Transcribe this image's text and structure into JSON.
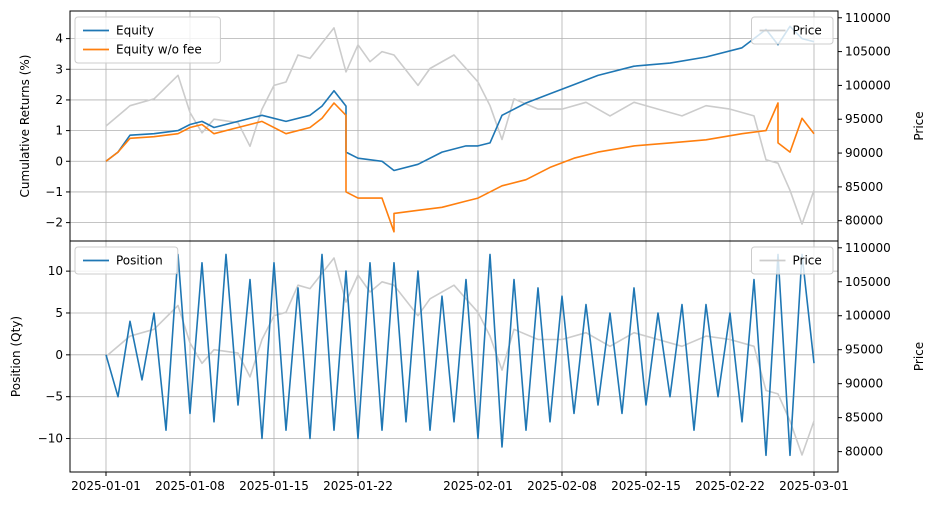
{
  "chart_data": [
    {
      "type": "line",
      "ylabel": "Cumulative Returns (%)",
      "y2label": "Price",
      "ylim": [
        -2.6,
        4.9
      ],
      "y2lim": [
        77000,
        111000
      ],
      "yticks": [
        -2,
        -1,
        0,
        1,
        2,
        3,
        4
      ],
      "y2ticks": [
        80000,
        85000,
        90000,
        95000,
        100000,
        105000,
        110000
      ],
      "grid": true,
      "legend": {
        "position": "top-left",
        "entries": [
          "Equity",
          "Equity w/o fee"
        ]
      },
      "legend2": {
        "position": "top-right",
        "entries": [
          "Price"
        ]
      },
      "series": [
        {
          "name": "Equity",
          "color": "#1f77b4",
          "points": [
            [
              "2025-01-01",
              0.0
            ],
            [
              "2025-01-02",
              0.3
            ],
            [
              "2025-01-03",
              0.85
            ],
            [
              "2025-01-05",
              0.9
            ],
            [
              "2025-01-07",
              1.0
            ],
            [
              "2025-01-08",
              1.2
            ],
            [
              "2025-01-09",
              1.3
            ],
            [
              "2025-01-10",
              1.1
            ],
            [
              "2025-01-12",
              1.3
            ],
            [
              "2025-01-14",
              1.5
            ],
            [
              "2025-01-16",
              1.3
            ],
            [
              "2025-01-18",
              1.5
            ],
            [
              "2025-01-19",
              1.8
            ],
            [
              "2025-01-20",
              2.3
            ],
            [
              "2025-01-21",
              1.8
            ],
            [
              "2025-01-21",
              0.3
            ],
            [
              "2025-01-22",
              0.1
            ],
            [
              "2025-01-24",
              0.0
            ],
            [
              "2025-01-25",
              -0.3
            ],
            [
              "2025-01-27",
              -0.1
            ],
            [
              "2025-01-29",
              0.3
            ],
            [
              "2025-01-31",
              0.5
            ],
            [
              "2025-02-01",
              0.5
            ],
            [
              "2025-02-02",
              0.6
            ],
            [
              "2025-02-03",
              1.5
            ],
            [
              "2025-02-05",
              1.9
            ],
            [
              "2025-02-07",
              2.2
            ],
            [
              "2025-02-09",
              2.5
            ],
            [
              "2025-02-11",
              2.8
            ],
            [
              "2025-02-14",
              3.1
            ],
            [
              "2025-02-17",
              3.2
            ],
            [
              "2025-02-20",
              3.4
            ],
            [
              "2025-02-23",
              3.7
            ],
            [
              "2025-02-25",
              4.3
            ],
            [
              "2025-02-26",
              3.8
            ],
            [
              "2025-02-27",
              4.4
            ],
            [
              "2025-02-28",
              4.0
            ],
            [
              "2025-03-01",
              3.9
            ]
          ]
        },
        {
          "name": "Equity w/o fee",
          "color": "#ff7f0e",
          "points": [
            [
              "2025-01-01",
              0.0
            ],
            [
              "2025-01-02",
              0.3
            ],
            [
              "2025-01-03",
              0.75
            ],
            [
              "2025-01-05",
              0.8
            ],
            [
              "2025-01-07",
              0.9
            ],
            [
              "2025-01-08",
              1.1
            ],
            [
              "2025-01-09",
              1.2
            ],
            [
              "2025-01-10",
              0.9
            ],
            [
              "2025-01-12",
              1.1
            ],
            [
              "2025-01-14",
              1.3
            ],
            [
              "2025-01-16",
              0.9
            ],
            [
              "2025-01-18",
              1.1
            ],
            [
              "2025-01-19",
              1.4
            ],
            [
              "2025-01-20",
              1.9
            ],
            [
              "2025-01-21",
              1.5
            ],
            [
              "2025-01-21",
              -1.0
            ],
            [
              "2025-01-22",
              -1.2
            ],
            [
              "2025-01-24",
              -1.2
            ],
            [
              "2025-01-25",
              -2.3
            ],
            [
              "2025-01-25",
              -1.7
            ],
            [
              "2025-01-27",
              -1.6
            ],
            [
              "2025-01-29",
              -1.5
            ],
            [
              "2025-01-31",
              -1.3
            ],
            [
              "2025-02-01",
              -1.2
            ],
            [
              "2025-02-03",
              -0.8
            ],
            [
              "2025-02-05",
              -0.6
            ],
            [
              "2025-02-07",
              -0.2
            ],
            [
              "2025-02-09",
              0.1
            ],
            [
              "2025-02-11",
              0.3
            ],
            [
              "2025-02-14",
              0.5
            ],
            [
              "2025-02-17",
              0.6
            ],
            [
              "2025-02-20",
              0.7
            ],
            [
              "2025-02-23",
              0.9
            ],
            [
              "2025-02-25",
              1.0
            ],
            [
              "2025-02-26",
              1.9
            ],
            [
              "2025-02-26",
              0.6
            ],
            [
              "2025-02-27",
              0.3
            ],
            [
              "2025-02-28",
              1.4
            ],
            [
              "2025-03-01",
              0.9
            ]
          ]
        },
        {
          "name": "Price",
          "color": "#cccccc",
          "axis": "right",
          "points": [
            [
              "2025-01-01",
              94000
            ],
            [
              "2025-01-03",
              97000
            ],
            [
              "2025-01-05",
              98000
            ],
            [
              "2025-01-07",
              101500
            ],
            [
              "2025-01-08",
              96000
            ],
            [
              "2025-01-09",
              93000
            ],
            [
              "2025-01-10",
              95000
            ],
            [
              "2025-01-12",
              94500
            ],
            [
              "2025-01-13",
              91000
            ],
            [
              "2025-01-14",
              96500
            ],
            [
              "2025-01-15",
              100000
            ],
            [
              "2025-01-16",
              100500
            ],
            [
              "2025-01-17",
              104500
            ],
            [
              "2025-01-18",
              104000
            ],
            [
              "2025-01-20",
              108500
            ],
            [
              "2025-01-21",
              102000
            ],
            [
              "2025-01-22",
              106000
            ],
            [
              "2025-01-23",
              103500
            ],
            [
              "2025-01-24",
              105000
            ],
            [
              "2025-01-25",
              104500
            ],
            [
              "2025-01-27",
              100000
            ],
            [
              "2025-01-28",
              102500
            ],
            [
              "2025-01-30",
              104500
            ],
            [
              "2025-01-31",
              102500
            ],
            [
              "2025-02-01",
              100500
            ],
            [
              "2025-02-02",
              97000
            ],
            [
              "2025-02-03",
              92000
            ],
            [
              "2025-02-04",
              98000
            ],
            [
              "2025-02-06",
              96500
            ],
            [
              "2025-02-08",
              96500
            ],
            [
              "2025-02-10",
              97500
            ],
            [
              "2025-02-12",
              95500
            ],
            [
              "2025-02-14",
              97500
            ],
            [
              "2025-02-16",
              96500
            ],
            [
              "2025-02-18",
              95500
            ],
            [
              "2025-02-20",
              97000
            ],
            [
              "2025-02-22",
              96500
            ],
            [
              "2025-02-24",
              95500
            ],
            [
              "2025-02-25",
              89000
            ],
            [
              "2025-02-26",
              88500
            ],
            [
              "2025-02-27",
              84500
            ],
            [
              "2025-02-28",
              79500
            ],
            [
              "2025-03-01",
              84500
            ]
          ]
        }
      ]
    },
    {
      "type": "line",
      "ylabel": "Position (Qty)",
      "y2label": "Price",
      "ylim": [
        -14,
        13.6
      ],
      "y2lim": [
        77000,
        111000
      ],
      "yticks": [
        -10,
        -5,
        0,
        5,
        10
      ],
      "y2ticks": [
        80000,
        85000,
        90000,
        95000,
        100000,
        105000,
        110000
      ],
      "xlim": [
        "2024-12-29",
        "2025-03-03"
      ],
      "xticks": [
        "2025-01-01",
        "2025-01-08",
        "2025-01-15",
        "2025-01-22",
        "2025-02-01",
        "2025-02-08",
        "2025-02-15",
        "2025-02-22",
        "2025-03-01"
      ],
      "grid": true,
      "legend": {
        "position": "top-left",
        "entries": [
          "Position"
        ]
      },
      "legend2": {
        "position": "top-right",
        "entries": [
          "Price"
        ]
      },
      "series": [
        {
          "name": "Position",
          "color": "#1f77b4",
          "points": [
            [
              "2025-01-01",
              0
            ],
            [
              "2025-01-02",
              -5
            ],
            [
              "2025-01-03",
              4
            ],
            [
              "2025-01-04",
              -3
            ],
            [
              "2025-01-05",
              5
            ],
            [
              "2025-01-06",
              -9
            ],
            [
              "2025-01-07",
              12
            ],
            [
              "2025-01-08",
              -7
            ],
            [
              "2025-01-09",
              11
            ],
            [
              "2025-01-10",
              -8
            ],
            [
              "2025-01-11",
              12
            ],
            [
              "2025-01-12",
              -6
            ],
            [
              "2025-01-13",
              9
            ],
            [
              "2025-01-14",
              -10
            ],
            [
              "2025-01-15",
              11
            ],
            [
              "2025-01-16",
              -9
            ],
            [
              "2025-01-17",
              8
            ],
            [
              "2025-01-18",
              -10
            ],
            [
              "2025-01-19",
              12
            ],
            [
              "2025-01-20",
              -9
            ],
            [
              "2025-01-21",
              10
            ],
            [
              "2025-01-22",
              -10
            ],
            [
              "2025-01-23",
              11
            ],
            [
              "2025-01-24",
              -9
            ],
            [
              "2025-01-25",
              11
            ],
            [
              "2025-01-26",
              -8
            ],
            [
              "2025-01-27",
              10
            ],
            [
              "2025-01-28",
              -9
            ],
            [
              "2025-01-29",
              7
            ],
            [
              "2025-01-30",
              -8
            ],
            [
              "2025-01-31",
              9
            ],
            [
              "2025-02-01",
              -10
            ],
            [
              "2025-02-02",
              12
            ],
            [
              "2025-02-03",
              -11
            ],
            [
              "2025-02-04",
              9
            ],
            [
              "2025-02-05",
              -9
            ],
            [
              "2025-02-06",
              8
            ],
            [
              "2025-02-07",
              -8
            ],
            [
              "2025-02-08",
              7
            ],
            [
              "2025-02-09",
              -7
            ],
            [
              "2025-02-10",
              6
            ],
            [
              "2025-02-11",
              -6
            ],
            [
              "2025-02-12",
              5
            ],
            [
              "2025-02-13",
              -7
            ],
            [
              "2025-02-14",
              8
            ],
            [
              "2025-02-15",
              -6
            ],
            [
              "2025-02-16",
              5
            ],
            [
              "2025-02-17",
              -5
            ],
            [
              "2025-02-18",
              6
            ],
            [
              "2025-02-19",
              -9
            ],
            [
              "2025-02-20",
              6
            ],
            [
              "2025-02-21",
              -5
            ],
            [
              "2025-02-22",
              5
            ],
            [
              "2025-02-23",
              -8
            ],
            [
              "2025-02-24",
              9
            ],
            [
              "2025-02-25",
              -12
            ],
            [
              "2025-02-26",
              12
            ],
            [
              "2025-02-27",
              -12
            ],
            [
              "2025-02-28",
              12
            ],
            [
              "2025-03-01",
              -1
            ]
          ]
        },
        {
          "name": "Price",
          "color": "#cccccc",
          "axis": "right",
          "points": [
            [
              "2025-01-01",
              94000
            ],
            [
              "2025-01-03",
              97000
            ],
            [
              "2025-01-05",
              98000
            ],
            [
              "2025-01-07",
              101500
            ],
            [
              "2025-01-08",
              96000
            ],
            [
              "2025-01-09",
              93000
            ],
            [
              "2025-01-10",
              95000
            ],
            [
              "2025-01-12",
              94500
            ],
            [
              "2025-01-13",
              91000
            ],
            [
              "2025-01-14",
              96500
            ],
            [
              "2025-01-15",
              100000
            ],
            [
              "2025-01-16",
              100500
            ],
            [
              "2025-01-17",
              104500
            ],
            [
              "2025-01-18",
              104000
            ],
            [
              "2025-01-20",
              108500
            ],
            [
              "2025-01-21",
              102000
            ],
            [
              "2025-01-22",
              106000
            ],
            [
              "2025-01-23",
              103500
            ],
            [
              "2025-01-24",
              105000
            ],
            [
              "2025-01-25",
              104500
            ],
            [
              "2025-01-27",
              100000
            ],
            [
              "2025-01-28",
              102500
            ],
            [
              "2025-01-30",
              104500
            ],
            [
              "2025-01-31",
              102500
            ],
            [
              "2025-02-01",
              100500
            ],
            [
              "2025-02-02",
              97000
            ],
            [
              "2025-02-03",
              92000
            ],
            [
              "2025-02-04",
              98000
            ],
            [
              "2025-02-06",
              96500
            ],
            [
              "2025-02-08",
              96500
            ],
            [
              "2025-02-10",
              97500
            ],
            [
              "2025-02-12",
              95500
            ],
            [
              "2025-02-14",
              97500
            ],
            [
              "2025-02-16",
              96500
            ],
            [
              "2025-02-18",
              95500
            ],
            [
              "2025-02-20",
              97000
            ],
            [
              "2025-02-22",
              96500
            ],
            [
              "2025-02-24",
              95500
            ],
            [
              "2025-02-25",
              89000
            ],
            [
              "2025-02-26",
              88500
            ],
            [
              "2025-02-27",
              84500
            ],
            [
              "2025-02-28",
              79500
            ],
            [
              "2025-03-01",
              84500
            ]
          ]
        }
      ]
    }
  ]
}
